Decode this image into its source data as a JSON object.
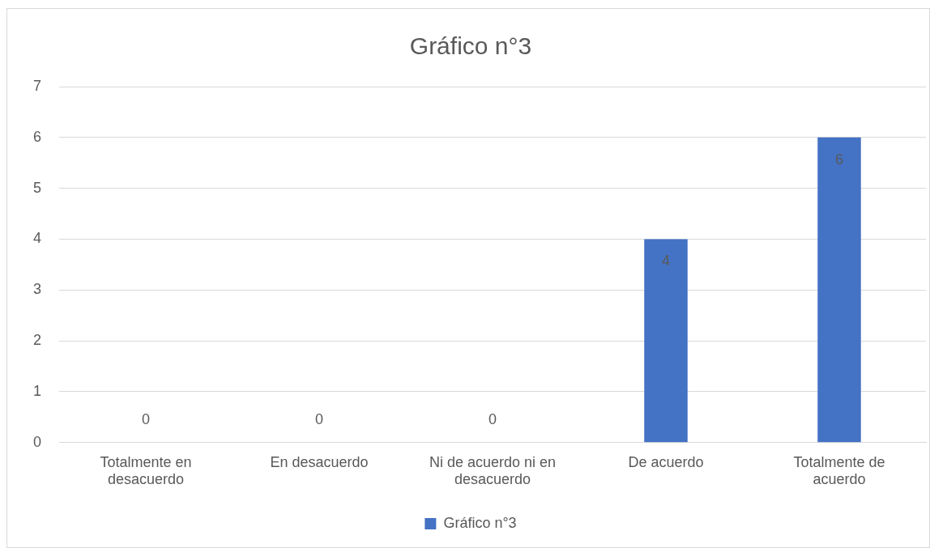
{
  "chart_data": {
    "type": "bar",
    "title": "Gráfico n°3",
    "categories": [
      "Totalmente en desacuerdo",
      "En desacuerdo",
      "Ni de acuerdo ni en desacuerdo",
      "De acuerdo",
      "Totalmente de acuerdo"
    ],
    "series": [
      {
        "name": "Gráfico n°3",
        "color": "#4472c4",
        "values": [
          0,
          0,
          0,
          4,
          6
        ]
      }
    ],
    "ylim": [
      0,
      7
    ],
    "yticks": [
      0,
      1,
      2,
      3,
      4,
      5,
      6,
      7
    ],
    "grid": "y",
    "legend": "bottom",
    "data_labels": true
  }
}
